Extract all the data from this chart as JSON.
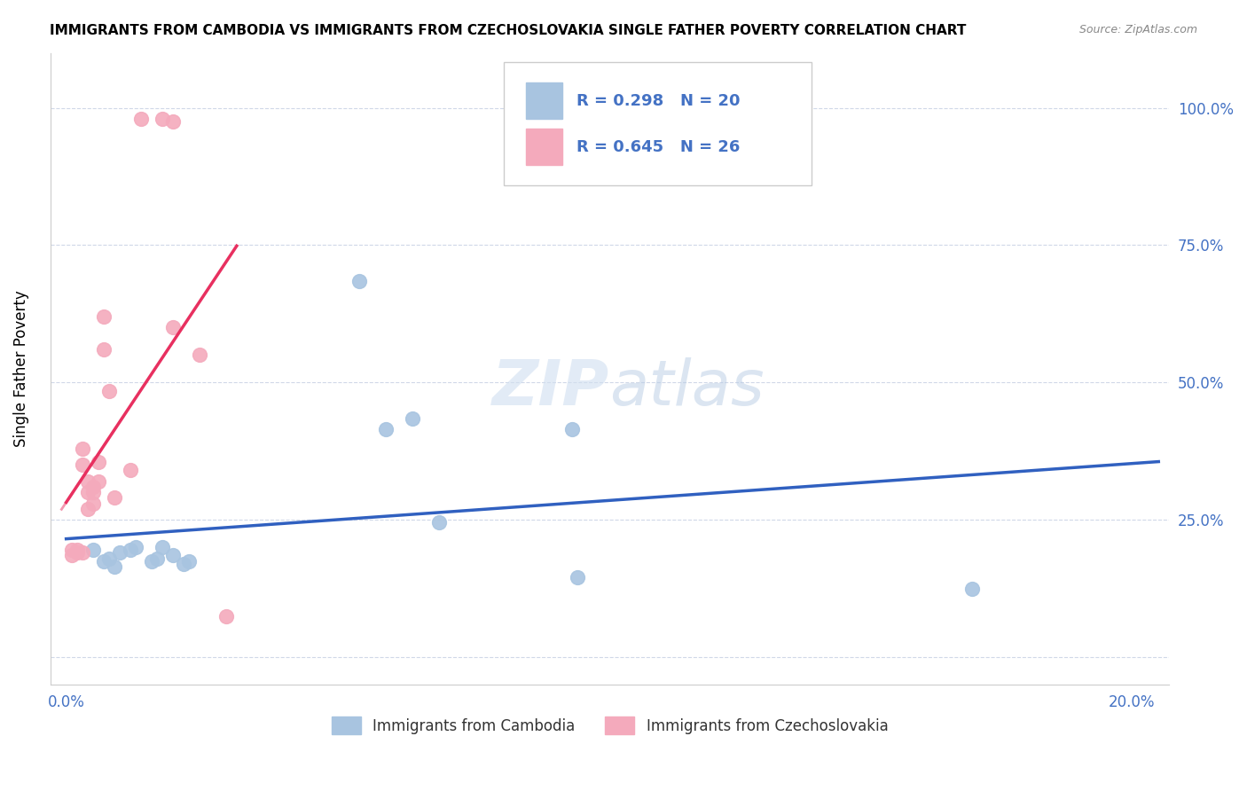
{
  "title": "IMMIGRANTS FROM CAMBODIA VS IMMIGRANTS FROM CZECHOSLOVAKIA SINGLE FATHER POVERTY CORRELATION CHART",
  "source": "Source: ZipAtlas.com",
  "ylabel": "Single Father Poverty",
  "y_ticks": [
    0.0,
    0.25,
    0.5,
    0.75,
    1.0
  ],
  "y_tick_labels": [
    "",
    "25.0%",
    "50.0%",
    "75.0%",
    "100.0%"
  ],
  "x_ticks": [
    0.0,
    0.05,
    0.1,
    0.15,
    0.2
  ],
  "legend_r1": "R = 0.298",
  "legend_n1": "N = 20",
  "legend_r2": "R = 0.645",
  "legend_n2": "N = 26",
  "cambodia_color": "#a8c4e0",
  "czechoslovakia_color": "#f4aabc",
  "cambodia_line_color": "#3060c0",
  "czechoslovakia_line_color": "#e83060",
  "background_color": "#ffffff",
  "cambodia_x": [
    0.005,
    0.007,
    0.008,
    0.009,
    0.01,
    0.012,
    0.013,
    0.016,
    0.017,
    0.018,
    0.02,
    0.022,
    0.023,
    0.055,
    0.06,
    0.065,
    0.07,
    0.095,
    0.096,
    0.17
  ],
  "cambodia_y": [
    0.195,
    0.175,
    0.18,
    0.165,
    0.19,
    0.195,
    0.2,
    0.175,
    0.18,
    0.2,
    0.185,
    0.17,
    0.175,
    0.685,
    0.415,
    0.435,
    0.245,
    0.415,
    0.145,
    0.125
  ],
  "czechoslovakia_x": [
    0.001,
    0.001,
    0.002,
    0.002,
    0.003,
    0.003,
    0.003,
    0.004,
    0.004,
    0.004,
    0.005,
    0.005,
    0.005,
    0.006,
    0.006,
    0.007,
    0.007,
    0.008,
    0.009,
    0.012,
    0.014,
    0.018,
    0.02,
    0.02,
    0.025,
    0.03
  ],
  "czechoslovakia_y": [
    0.195,
    0.185,
    0.19,
    0.195,
    0.19,
    0.35,
    0.38,
    0.3,
    0.32,
    0.27,
    0.31,
    0.28,
    0.3,
    0.32,
    0.355,
    0.56,
    0.62,
    0.485,
    0.29,
    0.34,
    0.98,
    0.98,
    0.6,
    0.975,
    0.55,
    0.075
  ]
}
